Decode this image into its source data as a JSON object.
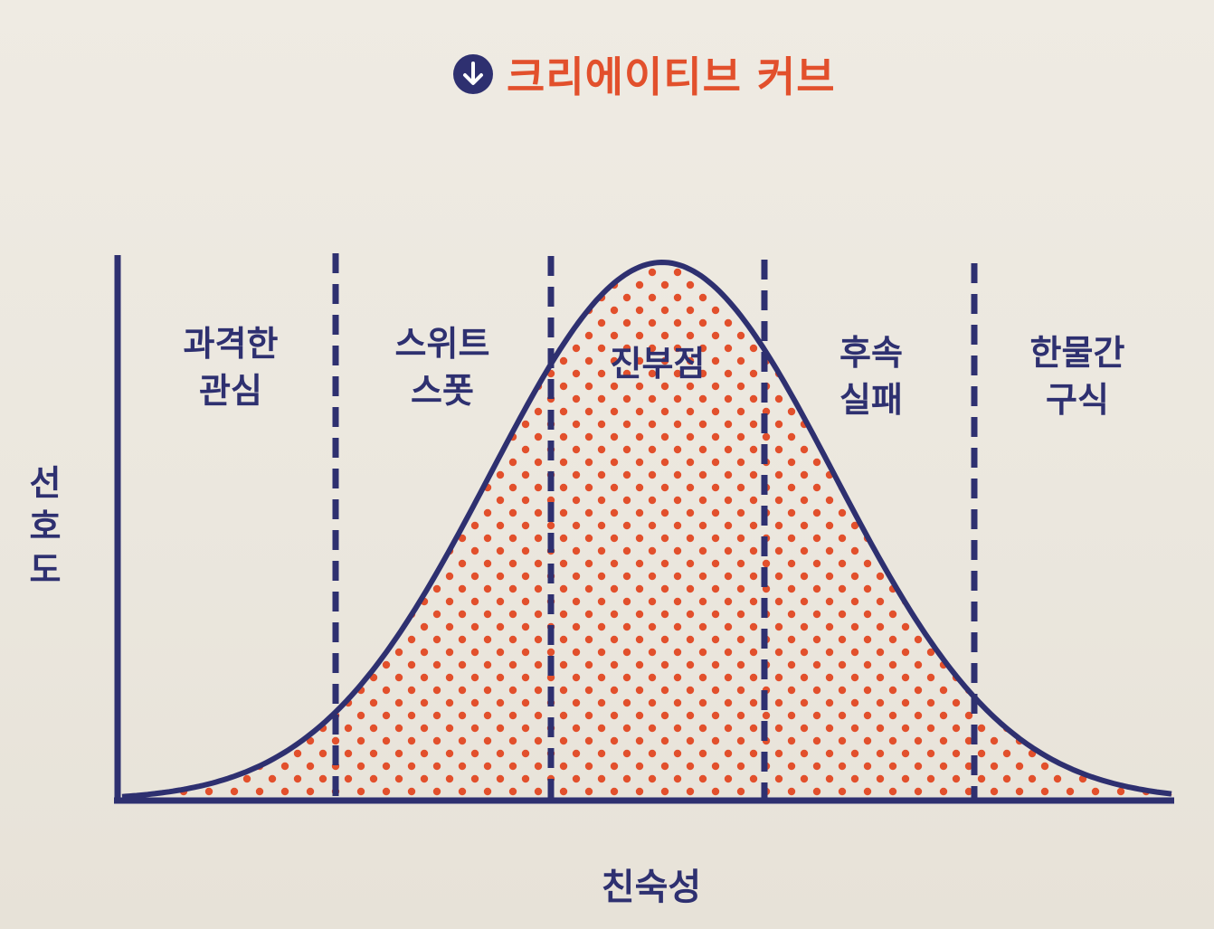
{
  "title": "크리에이티브 커브",
  "icons": {
    "title_icon": "arrow-down-circle-icon"
  },
  "colors": {
    "navy": "#2e3070",
    "accent": "#e2502c",
    "background": "#ece8df"
  },
  "axes": {
    "y_label_chars": [
      "선",
      "호",
      "도"
    ],
    "x_label": "친숙성"
  },
  "zones": [
    {
      "line1": "과격한",
      "line2": "관심"
    },
    {
      "line1": "스위트",
      "line2": "스폿"
    },
    {
      "line1": "진부점",
      "line2": ""
    },
    {
      "line1": "후속",
      "line2": "실패"
    },
    {
      "line1": "한물간",
      "line2": "구식"
    }
  ]
}
